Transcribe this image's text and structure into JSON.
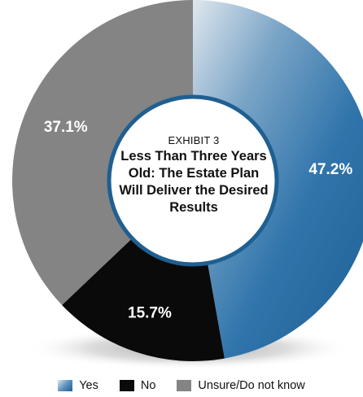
{
  "chart_data": {
    "type": "pie",
    "subtitle": "EXHIBIT 3",
    "title": "Less Than Three Years Old: The Estate Plan Will Deliver the Desired Results",
    "categories": [
      "Yes",
      "No",
      "Unsure/Do not know"
    ],
    "values": [
      47.2,
      15.7,
      37.1
    ],
    "value_labels": [
      "47.2%",
      "15.7%",
      "37.1%"
    ],
    "colors": [
      "#2a6fa3",
      "#0a0a0a",
      "#848484"
    ],
    "legend_position": "bottom-center",
    "donut": true
  }
}
